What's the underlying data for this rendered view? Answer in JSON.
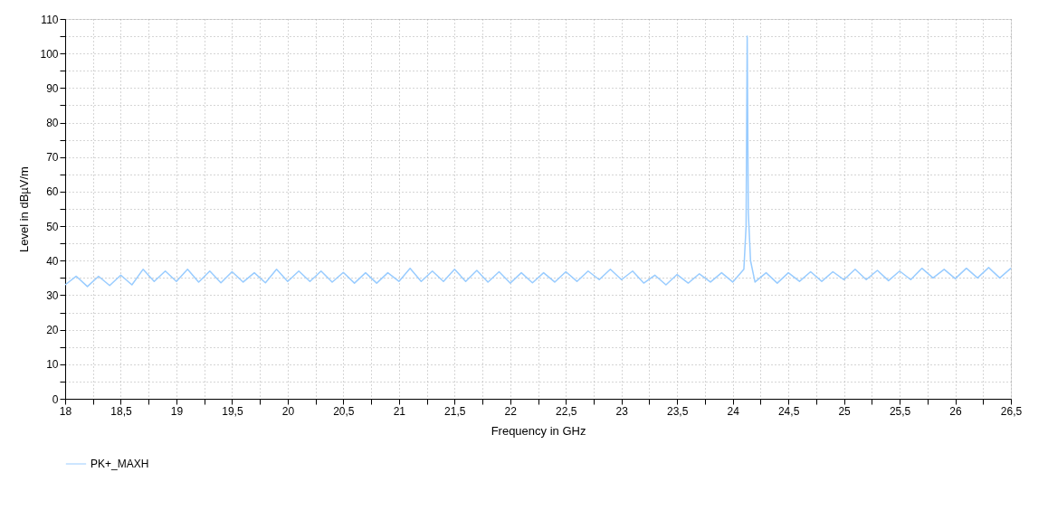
{
  "chart_data": {
    "type": "line",
    "xlabel": "Frequency in GHz",
    "ylabel": "Level in dBµV/m",
    "xlim": [
      18,
      26.5
    ],
    "ylim": [
      0,
      110
    ],
    "xticks": [
      18,
      {
        "value": 18.25,
        "label": null
      },
      {
        "value": 18.5,
        "label": "18,5"
      },
      {
        "value": 18.75,
        "label": null
      },
      19,
      {
        "value": 19.25,
        "label": null
      },
      {
        "value": 19.5,
        "label": "19,5"
      },
      {
        "value": 19.75,
        "label": null
      },
      20,
      {
        "value": 20.25,
        "label": null
      },
      {
        "value": 20.5,
        "label": "20,5"
      },
      {
        "value": 20.75,
        "label": null
      },
      21,
      {
        "value": 21.25,
        "label": null
      },
      {
        "value": 21.5,
        "label": "21,5"
      },
      {
        "value": 21.75,
        "label": null
      },
      22,
      {
        "value": 22.25,
        "label": null
      },
      {
        "value": 22.5,
        "label": "22,5"
      },
      {
        "value": 22.75,
        "label": null
      },
      23,
      {
        "value": 23.25,
        "label": null
      },
      {
        "value": 23.5,
        "label": "23,5"
      },
      {
        "value": 23.75,
        "label": null
      },
      24,
      {
        "value": 24.25,
        "label": null
      },
      {
        "value": 24.5,
        "label": "24,5"
      },
      {
        "value": 24.75,
        "label": null
      },
      25,
      {
        "value": 25.25,
        "label": null
      },
      {
        "value": 25.5,
        "label": "25,5"
      },
      {
        "value": 25.75,
        "label": null
      },
      26,
      {
        "value": 26.25,
        "label": null
      },
      {
        "value": 26.5,
        "label": "26,5"
      }
    ],
    "yticks": [
      0,
      {
        "value": 5,
        "label": null
      },
      10,
      {
        "value": 15,
        "label": null
      },
      20,
      {
        "value": 25,
        "label": null
      },
      30,
      {
        "value": 35,
        "label": null
      },
      40,
      {
        "value": 45,
        "label": null
      },
      50,
      {
        "value": 55,
        "label": null
      },
      60,
      {
        "value": 65,
        "label": null
      },
      70,
      {
        "value": 75,
        "label": null
      },
      80,
      {
        "value": 85,
        "label": null
      },
      90,
      {
        "value": 95,
        "label": null
      },
      100,
      {
        "value": 105,
        "label": null
      },
      110
    ],
    "grid": true,
    "legend": "bottom left",
    "marker": "none",
    "line_style": "solid",
    "series": [
      {
        "name": "PK+_MAXH",
        "color": "#99ccff",
        "x": [
          18.0,
          18.1,
          18.2,
          18.3,
          18.4,
          18.5,
          18.6,
          18.7,
          18.8,
          18.9,
          19.0,
          19.1,
          19.2,
          19.3,
          19.4,
          19.5,
          19.6,
          19.7,
          19.8,
          19.9,
          20.0,
          20.1,
          20.2,
          20.3,
          20.4,
          20.5,
          20.6,
          20.7,
          20.8,
          20.9,
          21.0,
          21.1,
          21.2,
          21.3,
          21.4,
          21.5,
          21.6,
          21.7,
          21.8,
          21.9,
          22.0,
          22.1,
          22.2,
          22.3,
          22.4,
          22.5,
          22.6,
          22.7,
          22.8,
          22.9,
          23.0,
          23.1,
          23.2,
          23.3,
          23.4,
          23.5,
          23.6,
          23.7,
          23.8,
          23.9,
          24.0,
          24.1,
          24.12,
          24.13,
          24.14,
          24.16,
          24.2,
          24.3,
          24.4,
          24.5,
          24.6,
          24.7,
          24.8,
          24.9,
          25.0,
          25.1,
          25.2,
          25.3,
          25.4,
          25.5,
          25.6,
          25.7,
          25.8,
          25.9,
          26.0,
          26.1,
          26.2,
          26.3,
          26.4,
          26.5
        ],
        "values": [
          33,
          35.5,
          32.5,
          35.5,
          32.8,
          35.8,
          33,
          37.5,
          34,
          37,
          34,
          37.5,
          33.8,
          37,
          33.6,
          36.8,
          33.8,
          36.5,
          33.6,
          37.5,
          34,
          37,
          34,
          37,
          33.8,
          36.6,
          33.5,
          36.5,
          33.5,
          36.5,
          34,
          37.8,
          34,
          37,
          34,
          37.5,
          34,
          37.2,
          33.8,
          36.8,
          33.5,
          36.5,
          33.6,
          36.5,
          33.8,
          36.8,
          34,
          37,
          34.5,
          37.5,
          34.5,
          37,
          33.5,
          35.8,
          33,
          36,
          33.5,
          36.2,
          33.8,
          36.5,
          33.8,
          37.5,
          50,
          105,
          54,
          40,
          33.8,
          36.5,
          33.5,
          36.5,
          34,
          36.8,
          34,
          36.8,
          34.5,
          37.5,
          34.5,
          37.2,
          34.2,
          37,
          34.5,
          37.8,
          35,
          37.5,
          34.8,
          37.8,
          35,
          38,
          35,
          37.8
        ]
      }
    ]
  }
}
